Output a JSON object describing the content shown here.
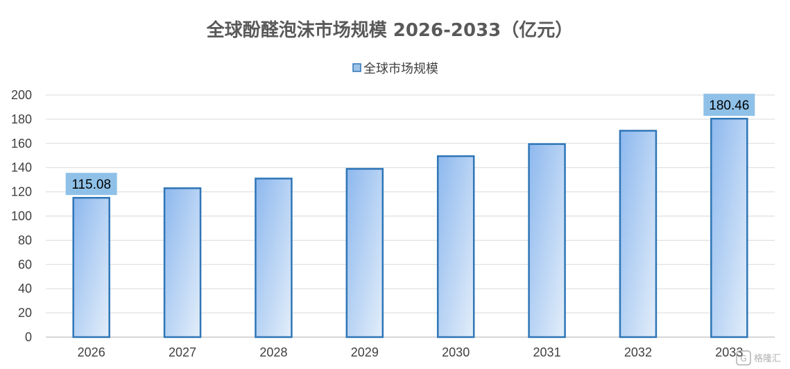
{
  "chart_data": {
    "type": "bar",
    "title": "全球酚醛泡沫市场规模 2026-2033（亿元）",
    "xlabel": "",
    "ylabel": "",
    "ylim": [
      0,
      200
    ],
    "yticks": [
      0,
      20,
      40,
      60,
      80,
      100,
      120,
      140,
      160,
      180,
      200
    ],
    "grid": true,
    "legend_position": "top-center",
    "categories": [
      "2026",
      "2027",
      "2028",
      "2029",
      "2030",
      "2031",
      "2032",
      "2033"
    ],
    "series": [
      {
        "name": "全球市场规模",
        "values": [
          115.08,
          123,
          131,
          139,
          149.5,
          159.5,
          170.5,
          180.46
        ],
        "color": "#9dc3e6",
        "edge_color": "#2e75b6"
      }
    ],
    "data_labels": [
      {
        "category": "2026",
        "text": "115.08"
      },
      {
        "category": "2033",
        "text": "180.46"
      }
    ],
    "label_box_color": "#8fc1e8"
  },
  "watermark": {
    "icon": "gelonghui-logo-icon",
    "text": "格隆汇"
  }
}
